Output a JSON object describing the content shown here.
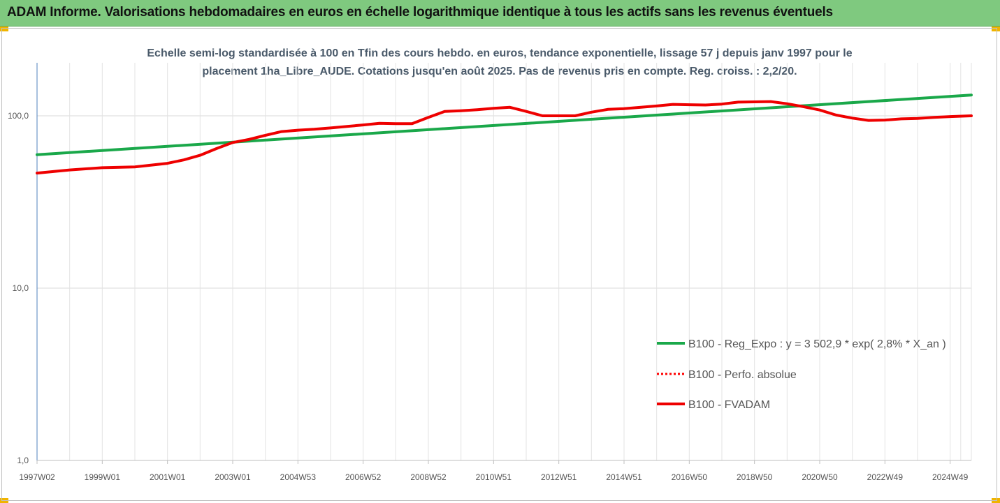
{
  "header": {
    "title": "ADAM Informe. Valorisations hebdomadaires en euros en échelle logarithmique identique à tous les actifs sans les revenus éventuels"
  },
  "chart_data": {
    "type": "line",
    "title_line1": "Echelle semi-log standardisée à 100 en Tfin des cours hebdo. en euros, tendance exponentielle, lissage 57 j depuis janv 1997 pour le",
    "title_line2": "placement 1ha_Libre_AUDE. Cotations jusqu'en août 2025. Pas de revenus pris en compte. Reg. croiss. : 2,2/20.",
    "y_scale": "log",
    "ylim": [
      1,
      200
    ],
    "y_ticks": [
      {
        "value": 1,
        "label": "1,0"
      },
      {
        "value": 10,
        "label": "10,0"
      },
      {
        "value": 100,
        "label": "100,0"
      }
    ],
    "xlim": [
      1997.0,
      2025.65
    ],
    "x_ticks": [
      {
        "x": 1997.0,
        "label": "1997W02"
      },
      {
        "x": 1999.0,
        "label": "1999W01"
      },
      {
        "x": 2001.0,
        "label": "2001W01"
      },
      {
        "x": 2003.0,
        "label": "2003W01"
      },
      {
        "x": 2005.0,
        "label": "2004W53"
      },
      {
        "x": 2007.0,
        "label": "2006W52"
      },
      {
        "x": 2009.0,
        "label": "2008W52"
      },
      {
        "x": 2011.0,
        "label": "2010W51"
      },
      {
        "x": 2013.0,
        "label": "2012W51"
      },
      {
        "x": 2015.0,
        "label": "2014W51"
      },
      {
        "x": 2017.0,
        "label": "2016W50"
      },
      {
        "x": 2019.0,
        "label": "2018W50"
      },
      {
        "x": 2021.0,
        "label": "2020W50"
      },
      {
        "x": 2023.0,
        "label": "2022W49"
      },
      {
        "x": 2025.0,
        "label": "2024W49"
      }
    ],
    "legend_position": "right",
    "series": [
      {
        "name": "B100 - Reg_Expo : y = 3 502,9 * exp( 2,8% *  X_an )",
        "color": "#1aa84a",
        "style": "solid",
        "points": [
          [
            1997.0,
            59.5
          ],
          [
            2025.65,
            132
          ]
        ]
      },
      {
        "name": "B100 - Perfo. absolue",
        "color": "#ff0000",
        "style": "dotted",
        "points": []
      },
      {
        "name": "B100 - FVADAM",
        "color": "#ee0000",
        "style": "solid",
        "points": [
          [
            1997.0,
            46.5
          ],
          [
            1998.0,
            48.5
          ],
          [
            1999.0,
            50.0
          ],
          [
            2000.0,
            50.5
          ],
          [
            2001.0,
            53.0
          ],
          [
            2001.5,
            55.5
          ],
          [
            2002.0,
            59.0
          ],
          [
            2002.5,
            64.5
          ],
          [
            2003.0,
            70.0
          ],
          [
            2003.5,
            73.0
          ],
          [
            2004.0,
            77.0
          ],
          [
            2004.5,
            81.0
          ],
          [
            2005.0,
            82.5
          ],
          [
            2005.5,
            83.5
          ],
          [
            2006.0,
            85.0
          ],
          [
            2007.0,
            88.5
          ],
          [
            2007.5,
            90.5
          ],
          [
            2008.0,
            90.0
          ],
          [
            2008.5,
            90.0
          ],
          [
            2009.0,
            98.0
          ],
          [
            2009.5,
            106.0
          ],
          [
            2010.0,
            107.0
          ],
          [
            2010.5,
            108.5
          ],
          [
            2011.0,
            110.5
          ],
          [
            2011.5,
            112.0
          ],
          [
            2012.0,
            106.0
          ],
          [
            2012.5,
            100.0
          ],
          [
            2013.0,
            100.0
          ],
          [
            2013.5,
            100.0
          ],
          [
            2014.0,
            105.0
          ],
          [
            2014.5,
            109.0
          ],
          [
            2015.0,
            110.0
          ],
          [
            2016.0,
            114.0
          ],
          [
            2016.5,
            116.5
          ],
          [
            2017.0,
            116.0
          ],
          [
            2017.5,
            115.5
          ],
          [
            2018.0,
            117.0
          ],
          [
            2018.5,
            120.0
          ],
          [
            2019.0,
            120.5
          ],
          [
            2019.5,
            121.0
          ],
          [
            2020.0,
            117.5
          ],
          [
            2020.5,
            113.0
          ],
          [
            2021.0,
            108.0
          ],
          [
            2021.5,
            101.0
          ],
          [
            2022.0,
            97.0
          ],
          [
            2022.5,
            94.0
          ],
          [
            2023.0,
            94.5
          ],
          [
            2023.5,
            96.0
          ],
          [
            2024.0,
            96.5
          ],
          [
            2024.5,
            98.0
          ],
          [
            2025.0,
            99.0
          ],
          [
            2025.65,
            100.0
          ]
        ]
      }
    ]
  }
}
